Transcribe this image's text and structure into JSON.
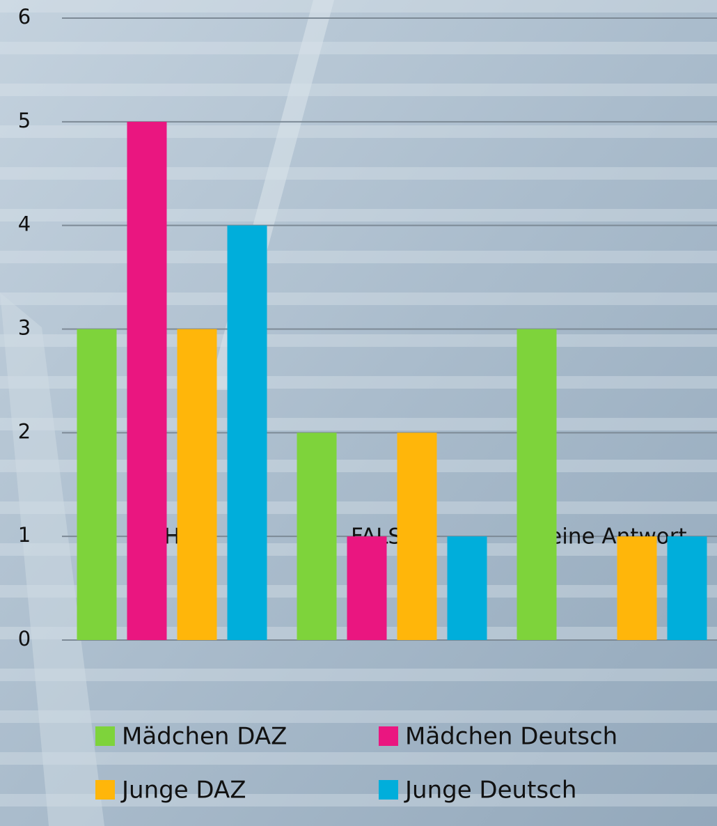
{
  "chart_data": {
    "type": "bar",
    "categories": [
      "RICHTIG",
      "FALSCH",
      "keine Antwort"
    ],
    "series": [
      {
        "name": "Mädchen DAZ",
        "color": "#7ed33b",
        "values": [
          3,
          2,
          3
        ]
      },
      {
        "name": "Mädchen Deutsch",
        "color": "#ea1680",
        "values": [
          5,
          1,
          0
        ]
      },
      {
        "name": "Junge DAZ",
        "color": "#ffb60a",
        "values": [
          3,
          2,
          1
        ]
      },
      {
        "name": "Junge Deutsch",
        "color": "#00aedb",
        "values": [
          4,
          1,
          1
        ]
      }
    ],
    "ylim": [
      0,
      6
    ],
    "yticks": [
      0,
      1,
      2,
      3,
      4,
      5,
      6
    ],
    "grid": true,
    "legend": "bottom"
  }
}
